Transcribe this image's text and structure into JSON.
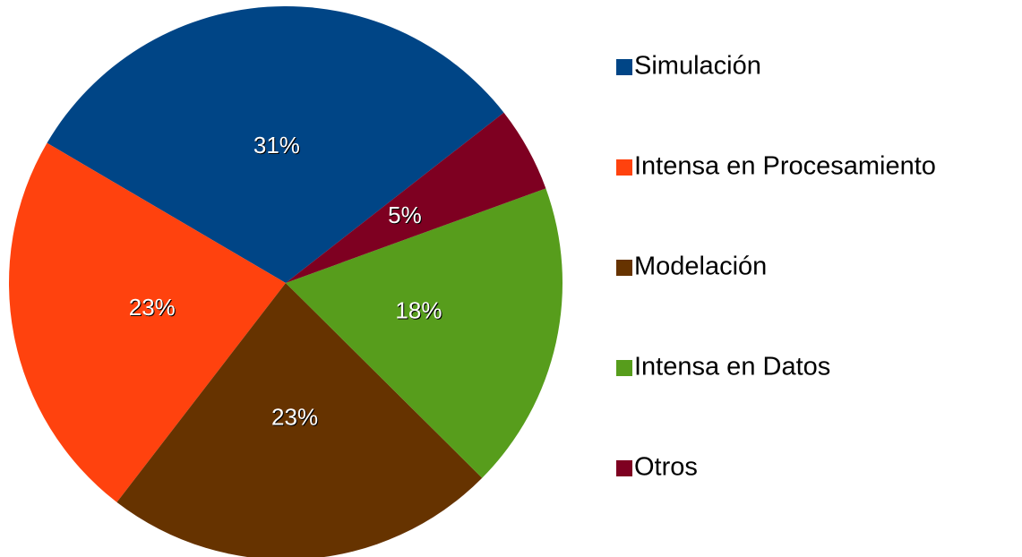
{
  "chart_data": {
    "type": "pie",
    "categories": [
      "Simulación",
      "Intensa en Procesamiento",
      "Modelación",
      "Intensa en Datos",
      "Otros"
    ],
    "values": [
      31,
      23,
      23,
      18,
      5
    ],
    "value_labels": [
      "31%",
      "23%",
      "23%",
      "18%",
      "5%"
    ],
    "colors": [
      "#004586",
      "#ff420e",
      "#663300",
      "#579d1c",
      "#7e0021"
    ],
    "legend": "right"
  }
}
